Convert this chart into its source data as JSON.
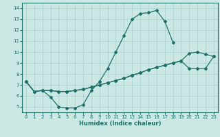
{
  "xlabel": "Humidex (Indice chaleur)",
  "bg_color": "#cce8e5",
  "grid_color": "#aacfcc",
  "line_color": "#1e7068",
  "xlim": [
    -0.5,
    23.5
  ],
  "ylim": [
    4.5,
    14.5
  ],
  "yticks": [
    5,
    6,
    7,
    8,
    9,
    10,
    11,
    12,
    13,
    14
  ],
  "xticks": [
    0,
    1,
    2,
    3,
    4,
    5,
    6,
    7,
    8,
    9,
    10,
    11,
    12,
    13,
    14,
    15,
    16,
    17,
    18,
    19,
    20,
    21,
    22,
    23
  ],
  "line1_x": [
    0,
    1,
    2,
    3,
    4,
    5,
    6,
    7,
    8,
    9,
    10,
    11,
    12,
    13,
    14,
    15,
    16,
    17,
    18
  ],
  "line1_y": [
    7.3,
    6.4,
    6.5,
    5.9,
    5.0,
    4.9,
    4.9,
    5.2,
    6.5,
    7.3,
    8.5,
    10.0,
    11.5,
    13.0,
    13.5,
    13.6,
    13.8,
    12.8,
    10.9
  ],
  "line2_x": [
    0,
    1,
    2,
    3,
    4,
    5,
    6,
    7,
    8,
    9,
    10,
    11,
    12,
    13,
    14,
    15,
    16,
    17,
    18,
    19,
    20,
    21,
    22,
    23
  ],
  "line2_y": [
    7.3,
    6.4,
    6.5,
    6.5,
    6.4,
    6.4,
    6.5,
    6.6,
    6.8,
    7.0,
    7.2,
    7.4,
    7.6,
    7.9,
    8.1,
    8.4,
    8.6,
    8.8,
    9.0,
    9.2,
    9.9,
    10.0,
    9.8,
    9.6
  ],
  "line3_x": [
    0,
    1,
    2,
    3,
    4,
    5,
    6,
    7,
    8,
    9,
    10,
    11,
    12,
    13,
    14,
    15,
    16,
    17,
    18,
    19,
    20,
    21,
    22,
    23
  ],
  "line3_y": [
    7.3,
    6.4,
    6.5,
    6.5,
    6.4,
    6.4,
    6.5,
    6.6,
    6.8,
    7.0,
    7.2,
    7.4,
    7.6,
    7.9,
    8.1,
    8.4,
    8.6,
    8.8,
    9.0,
    9.2,
    8.5,
    8.5,
    8.5,
    9.6
  ]
}
